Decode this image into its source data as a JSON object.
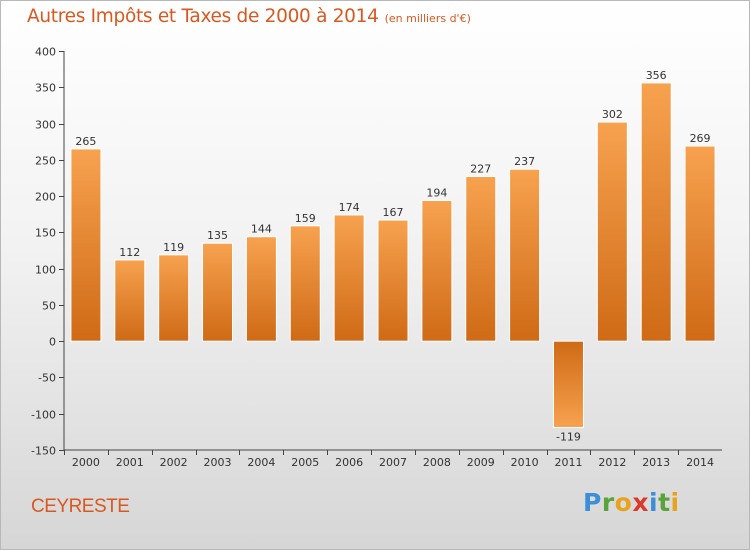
{
  "chart_data": {
    "type": "bar",
    "title": "Autres Impôts et Taxes de 2000 à 2014",
    "subtitle": "(en milliers d'€)",
    "categories": [
      "2000",
      "2001",
      "2002",
      "2003",
      "2004",
      "2005",
      "2006",
      "2007",
      "2008",
      "2009",
      "2010",
      "2011",
      "2012",
      "2013",
      "2014"
    ],
    "values": [
      265,
      112,
      119,
      135,
      144,
      159,
      174,
      167,
      194,
      227,
      237,
      -119,
      302,
      356,
      269
    ],
    "data_labels": [
      "265",
      "112",
      "119",
      "135",
      "144",
      "159",
      "174",
      "167",
      "194",
      "227",
      "237",
      "-119",
      "302",
      "356",
      "269"
    ],
    "ylim": [
      -150,
      400
    ],
    "yticks": [
      400,
      350,
      300,
      250,
      200,
      150,
      100,
      50,
      0,
      -50,
      -100,
      -150
    ],
    "ytick_labels": [
      "400",
      "350",
      "300",
      "250",
      "200",
      "150",
      "100",
      "50",
      "0",
      "-50",
      "-100",
      "-150"
    ],
    "grid": false,
    "bar_color_light": "#f7a24f",
    "bar_color_dark": "#cf6a16"
  },
  "footer": {
    "place": "CEYRESTE",
    "logo_letters": [
      {
        "ch": "P",
        "color": "#3b8fd6"
      },
      {
        "ch": "r",
        "color": "#5aa33a"
      },
      {
        "ch": "o",
        "color": "#e8a21c"
      },
      {
        "ch": "x",
        "color": "#d93a2b"
      },
      {
        "ch": "i",
        "color": "#3b8fd6"
      },
      {
        "ch": "t",
        "color": "#5aa33a"
      },
      {
        "ch": "i",
        "color": "#e8a21c"
      }
    ]
  }
}
